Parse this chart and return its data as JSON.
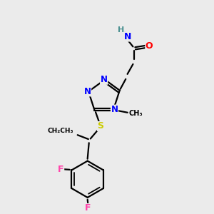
{
  "bg_color": "#ebebeb",
  "atom_colors": {
    "N": "#0000ff",
    "O": "#ff0000",
    "S": "#cccc00",
    "F": "#ff44aa",
    "H": "#4a9090",
    "C": "#000000"
  },
  "bond_color": "#000000"
}
